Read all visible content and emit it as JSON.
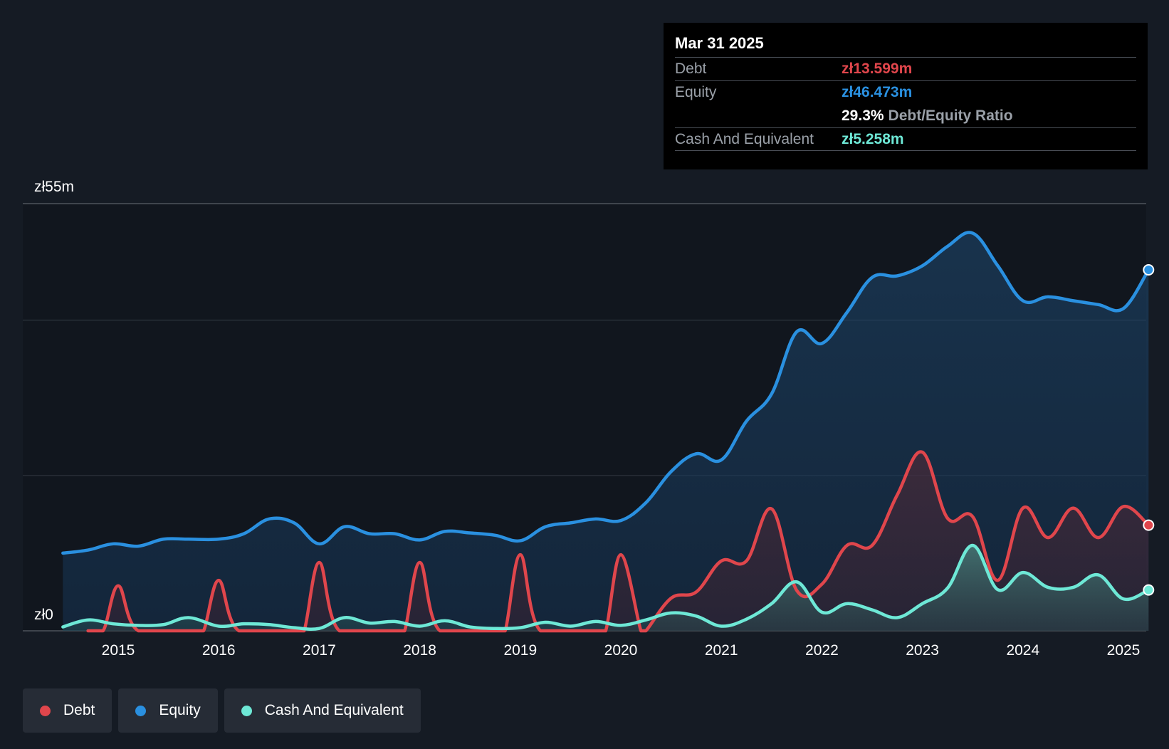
{
  "chart_data": {
    "type": "area",
    "title": "",
    "y_unit": "zł",
    "ylim": [
      0,
      55
    ],
    "y_tick_labels": [
      "zł0",
      "zł55m"
    ],
    "x_tick_labels": [
      "2015",
      "2016",
      "2017",
      "2018",
      "2019",
      "2020",
      "2021",
      "2022",
      "2023",
      "2024",
      "2025"
    ],
    "x_range": [
      2014.45,
      2025.25
    ],
    "series": [
      {
        "name": "Equity",
        "color": "#2a90e0",
        "x": [
          2014.45,
          2014.7,
          2014.95,
          2015.2,
          2015.45,
          2015.7,
          2016.0,
          2016.25,
          2016.5,
          2016.75,
          2017.0,
          2017.25,
          2017.5,
          2017.75,
          2018.0,
          2018.25,
          2018.5,
          2018.75,
          2019.0,
          2019.25,
          2019.5,
          2019.75,
          2020.0,
          2020.25,
          2020.5,
          2020.75,
          2021.0,
          2021.25,
          2021.5,
          2021.75,
          2022.0,
          2022.25,
          2022.5,
          2022.75,
          2023.0,
          2023.25,
          2023.5,
          2023.75,
          2024.0,
          2024.25,
          2024.5,
          2024.75,
          2025.0,
          2025.25
        ],
        "values": [
          10.0,
          10.4,
          11.2,
          10.9,
          11.8,
          11.8,
          11.8,
          12.5,
          14.4,
          13.9,
          11.2,
          13.4,
          12.5,
          12.5,
          11.7,
          12.8,
          12.6,
          12.3,
          11.6,
          13.4,
          13.9,
          14.4,
          14.2,
          16.5,
          20.5,
          22.8,
          22.0,
          27.0,
          30.5,
          38.5,
          37.0,
          41.0,
          45.5,
          45.7,
          47.0,
          49.5,
          51.2,
          47.0,
          42.5,
          43.0,
          42.5,
          42.0,
          41.5,
          46.473
        ]
      },
      {
        "name": "Debt",
        "color": "#e0464c",
        "x": [
          2014.7,
          2014.85,
          2015.0,
          2015.2,
          2015.75,
          2015.85,
          2016.0,
          2016.2,
          2016.75,
          2016.85,
          2017.0,
          2017.2,
          2017.75,
          2017.85,
          2018.0,
          2018.2,
          2018.75,
          2018.85,
          2019.0,
          2019.2,
          2019.75,
          2019.85,
          2020.0,
          2020.2,
          2020.25,
          2020.5,
          2020.75,
          2021.0,
          2021.25,
          2021.5,
          2021.75,
          2022.0,
          2022.25,
          2022.5,
          2022.75,
          2023.0,
          2023.25,
          2023.5,
          2023.75,
          2024.0,
          2024.25,
          2024.5,
          2024.75,
          2025.0,
          2025.25
        ],
        "values": [
          0,
          0,
          5.8,
          0,
          0,
          0,
          6.5,
          0,
          0,
          0,
          8.8,
          0,
          0,
          0,
          8.8,
          0,
          0,
          0,
          9.8,
          0,
          0,
          0,
          9.8,
          0,
          0,
          4.2,
          5.0,
          9.0,
          9.0,
          15.7,
          5.2,
          6.0,
          11.0,
          11.0,
          17.5,
          23.0,
          14.5,
          14.7,
          6.5,
          15.8,
          12.0,
          15.8,
          12.0,
          16.0,
          13.599
        ]
      },
      {
        "name": "Cash And Equivalent",
        "color": "#6ee8d6",
        "x": [
          2014.45,
          2014.7,
          2014.95,
          2015.2,
          2015.45,
          2015.7,
          2016.0,
          2016.25,
          2016.5,
          2016.75,
          2017.0,
          2017.25,
          2017.5,
          2017.75,
          2018.0,
          2018.25,
          2018.5,
          2018.75,
          2019.0,
          2019.25,
          2019.5,
          2019.75,
          2020.0,
          2020.25,
          2020.5,
          2020.75,
          2021.0,
          2021.25,
          2021.5,
          2021.75,
          2022.0,
          2022.25,
          2022.5,
          2022.75,
          2023.0,
          2023.25,
          2023.5,
          2023.75,
          2024.0,
          2024.25,
          2024.5,
          2024.75,
          2025.0,
          2025.25
        ],
        "values": [
          0.5,
          1.4,
          0.9,
          0.7,
          0.8,
          1.7,
          0.6,
          0.9,
          0.8,
          0.4,
          0.3,
          1.7,
          1.0,
          1.2,
          0.6,
          1.3,
          0.5,
          0.3,
          0.4,
          1.1,
          0.6,
          1.2,
          0.7,
          1.4,
          2.3,
          1.9,
          0.6,
          1.5,
          3.5,
          6.3,
          2.4,
          3.5,
          2.7,
          1.7,
          3.5,
          5.5,
          11.0,
          5.3,
          7.5,
          5.6,
          5.6,
          7.2,
          4.1,
          5.258
        ]
      }
    ]
  },
  "tooltip": {
    "date": "Mar 31 2025",
    "debt_label": "Debt",
    "debt_value": "zł13.599m",
    "equity_label": "Equity",
    "equity_value": "zł46.473m",
    "ratio_pct": "29.3%",
    "ratio_label": "Debt/Equity Ratio",
    "cash_label": "Cash And Equivalent",
    "cash_value": "zł5.258m"
  },
  "legend": [
    {
      "label": "Debt",
      "color": "#e0464c"
    },
    {
      "label": "Equity",
      "color": "#2a90e0"
    },
    {
      "label": "Cash And Equivalent",
      "color": "#6ee8d6"
    }
  ]
}
